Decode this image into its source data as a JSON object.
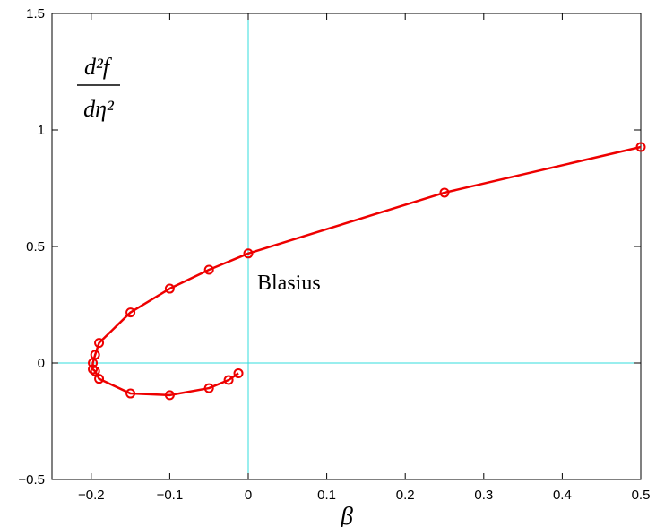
{
  "chart_data": {
    "type": "line",
    "xlabel": "β",
    "ylabel": {
      "numerator": "d²f",
      "denominator": "dη²"
    },
    "xlim": [
      -0.25,
      0.5
    ],
    "ylim": [
      -0.5,
      1.5
    ],
    "xticks": [
      -0.2,
      -0.1,
      0,
      0.1,
      0.2,
      0.3,
      0.4,
      0.5
    ],
    "xtick_labels": [
      "−0.2",
      "−0.1",
      "0",
      "0.1",
      "0.2",
      "0.3",
      "0.4",
      "0.5"
    ],
    "yticks": [
      -0.5,
      0,
      0.5,
      1,
      1.5
    ],
    "ytick_labels": [
      "−0.5",
      "0",
      "0.5",
      "1",
      "1.5"
    ],
    "grid": false,
    "reference_lines": {
      "x": 0,
      "y": 0,
      "color": "#33dddd"
    },
    "series": [
      {
        "color": "#ee0000",
        "marker": "circle",
        "x": [
          0.5,
          0.25,
          0,
          -0.05,
          -0.1,
          -0.15,
          -0.19,
          -0.195,
          -0.198,
          -0.198,
          -0.195,
          -0.19,
          -0.15,
          -0.1,
          -0.05,
          -0.025,
          -0.0125
        ],
        "y": [
          0.927,
          0.731,
          0.47,
          0.4,
          0.319,
          0.217,
          0.086,
          0.035,
          0.0,
          -0.027,
          -0.035,
          -0.068,
          -0.131,
          -0.138,
          -0.108,
          -0.073,
          -0.044
        ]
      }
    ],
    "annotations": [
      {
        "text": "Blasius",
        "x": 0,
        "y": 0.47
      }
    ]
  }
}
